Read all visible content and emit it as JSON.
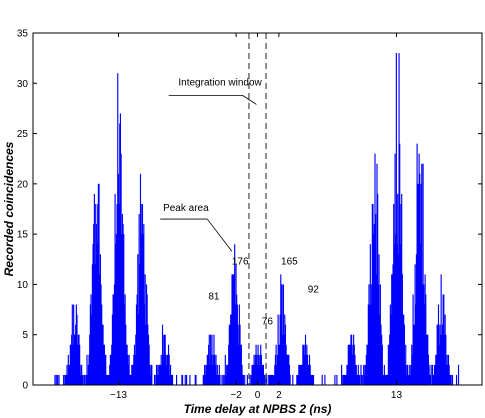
{
  "chart_data": {
    "type": "bar",
    "title": "",
    "xlabel": "Time delay at NPBS 2 (ns)",
    "ylabel": "Recorded coincidences",
    "xlim": [
      -21,
      21
    ],
    "ylim": [
      0,
      35
    ],
    "x_ticks": [
      {
        "value": -13,
        "label": "−13"
      },
      {
        "value": -2,
        "label": "−2"
      },
      {
        "value": 0,
        "label": "0"
      },
      {
        "value": 2,
        "label": "2"
      },
      {
        "value": 13,
        "label": "13"
      }
    ],
    "y_ticks": [
      0,
      5,
      10,
      15,
      20,
      25,
      30,
      35
    ],
    "grid": false,
    "bar_color": "#0000ff",
    "line_color": "#000000",
    "peaks": [
      {
        "center": -17.2,
        "height": 8
      },
      {
        "center": -15.1,
        "height": 22
      },
      {
        "center": -13.0,
        "height": 27
      },
      {
        "center": -10.9,
        "height": 19
      },
      {
        "center": -8.8,
        "height": 5
      },
      {
        "center": -4.4,
        "height": 4
      },
      {
        "center": -2.2,
        "height": 12
      },
      {
        "center": 0.0,
        "height": 4
      },
      {
        "center": 2.2,
        "height": 10
      },
      {
        "center": 4.4,
        "height": 5
      },
      {
        "center": 8.8,
        "height": 5
      },
      {
        "center": 10.9,
        "height": 22
      },
      {
        "center": 13.0,
        "height": 31
      },
      {
        "center": 15.1,
        "height": 26
      },
      {
        "center": 17.2,
        "height": 10
      }
    ],
    "integration_window": [
      -0.8,
      0.8
    ],
    "annotations": {
      "integration_window_label": "Integration window",
      "peak_area_label": "Peak area",
      "peak_counts": [
        {
          "text": "176",
          "x": -2.4,
          "y": 12
        },
        {
          "text": "165",
          "x": 2.2,
          "y": 12
        },
        {
          "text": "81",
          "x": -4.6,
          "y": 8.5
        },
        {
          "text": "92",
          "x": 4.7,
          "y": 9.2
        },
        {
          "text": "76",
          "x": 0.4,
          "y": 6
        }
      ]
    }
  }
}
